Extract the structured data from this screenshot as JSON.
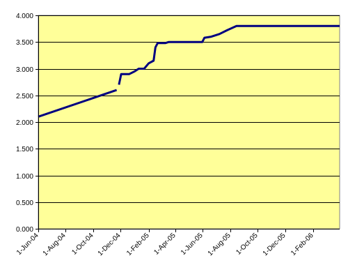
{
  "chart_data": {
    "type": "line",
    "title": "",
    "xlabel": "",
    "ylabel": "",
    "ylim": [
      0,
      4
    ],
    "xlim": [
      "2004-06-01",
      "2006-04-01"
    ],
    "y_ticks": [
      {
        "value": 0,
        "label": "0.000"
      },
      {
        "value": 0.5,
        "label": "0.500"
      },
      {
        "value": 1,
        "label": "1.000"
      },
      {
        "value": 1.5,
        "label": "1.500"
      },
      {
        "value": 2,
        "label": "2.000"
      },
      {
        "value": 2.5,
        "label": "2.500"
      },
      {
        "value": 3,
        "label": "3.000"
      },
      {
        "value": 3.5,
        "label": "3.500"
      },
      {
        "value": 4,
        "label": "4.000"
      }
    ],
    "x_ticks": [
      {
        "date": "2004-06-01",
        "label": "1-Jun-04"
      },
      {
        "date": "2004-08-01",
        "label": "1-Aug-04"
      },
      {
        "date": "2004-10-01",
        "label": "1-Oct-04"
      },
      {
        "date": "2004-12-01",
        "label": "1-Dec-04"
      },
      {
        "date": "2005-02-01",
        "label": "1-Feb-05"
      },
      {
        "date": "2005-04-01",
        "label": "1-Apr-05"
      },
      {
        "date": "2005-06-01",
        "label": "1-Jun-05"
      },
      {
        "date": "2005-08-01",
        "label": "1-Aug-05"
      },
      {
        "date": "2005-10-01",
        "label": "1-Oct-05"
      },
      {
        "date": "2005-12-01",
        "label": "1-Dec-05"
      },
      {
        "date": "2006-02-01",
        "label": "1-Feb-06"
      }
    ],
    "grid": "horizontal",
    "legend": "none",
    "series": [
      {
        "segments": [
          [
            {
              "x": "2004-06-01",
              "y": 2.1
            },
            {
              "x": "2004-11-22",
              "y": 2.6
            }
          ],
          [
            {
              "x": "2004-11-27",
              "y": 2.7
            },
            {
              "x": "2004-12-02",
              "y": 2.9
            },
            {
              "x": "2004-12-20",
              "y": 2.9
            },
            {
              "x": "2005-01-01",
              "y": 2.95
            },
            {
              "x": "2005-01-10",
              "y": 3.0
            },
            {
              "x": "2005-01-22",
              "y": 3.0
            },
            {
              "x": "2005-02-01",
              "y": 3.1
            },
            {
              "x": "2005-02-12",
              "y": 3.15
            },
            {
              "x": "2005-02-16",
              "y": 3.4
            },
            {
              "x": "2005-02-21",
              "y": 3.48
            },
            {
              "x": "2005-03-10",
              "y": 3.48
            },
            {
              "x": "2005-03-17",
              "y": 3.5
            },
            {
              "x": "2005-05-31",
              "y": 3.5
            },
            {
              "x": "2005-06-05",
              "y": 3.58
            },
            {
              "x": "2005-06-20",
              "y": 3.6
            },
            {
              "x": "2005-07-08",
              "y": 3.65
            },
            {
              "x": "2005-07-25",
              "y": 3.72
            },
            {
              "x": "2005-08-15",
              "y": 3.8
            },
            {
              "x": "2006-04-01",
              "y": 3.8
            }
          ]
        ]
      }
    ]
  },
  "colors": {
    "plot_background": "#ffff99",
    "series_line": "#000080",
    "grid_line": "#000000",
    "axis_line": "#808080"
  }
}
